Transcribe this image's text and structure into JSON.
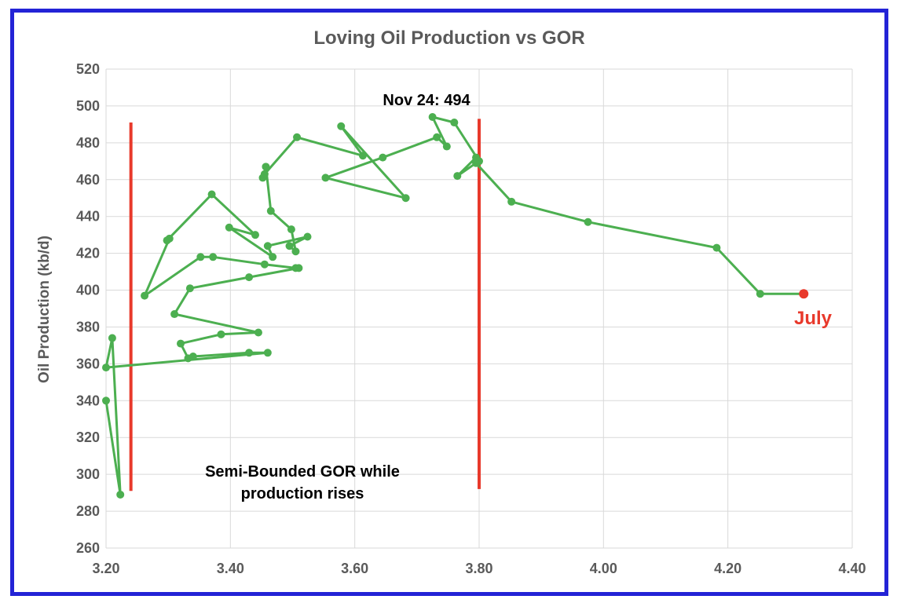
{
  "chart_data": {
    "type": "line",
    "title": "Loving Oil Production vs GOR",
    "xlabel": "",
    "ylabel": "Oil Production (kb/d)",
    "xlim": [
      3.2,
      4.4
    ],
    "ylim": [
      260,
      520
    ],
    "x_ticks": [
      "3.20",
      "3.40",
      "3.60",
      "3.80",
      "4.00",
      "4.20",
      "4.40"
    ],
    "y_ticks": [
      "260",
      "280",
      "300",
      "320",
      "340",
      "360",
      "380",
      "400",
      "420",
      "440",
      "460",
      "480",
      "500",
      "520"
    ],
    "grid": true,
    "legend": "none",
    "series": [
      {
        "color": "#4caf50",
        "points": [
          [
            3.2,
            340
          ],
          [
            3.223,
            289
          ],
          [
            3.21,
            374
          ],
          [
            3.2,
            358
          ],
          [
            3.46,
            366
          ],
          [
            3.43,
            366
          ],
          [
            3.34,
            364
          ],
          [
            3.332,
            363
          ],
          [
            3.32,
            371
          ],
          [
            3.385,
            376
          ],
          [
            3.445,
            377
          ],
          [
            3.31,
            387
          ],
          [
            3.335,
            401
          ],
          [
            3.43,
            407
          ],
          [
            3.51,
            412
          ],
          [
            3.505,
            412
          ],
          [
            3.455,
            414
          ],
          [
            3.372,
            418
          ],
          [
            3.352,
            418
          ],
          [
            3.262,
            397
          ],
          [
            3.302,
            428
          ],
          [
            3.298,
            427
          ],
          [
            3.37,
            452
          ],
          [
            3.44,
            430
          ],
          [
            3.398,
            434
          ],
          [
            3.468,
            418
          ],
          [
            3.46,
            424
          ],
          [
            3.524,
            429
          ],
          [
            3.495,
            424
          ],
          [
            3.505,
            421
          ],
          [
            3.498,
            433
          ],
          [
            3.465,
            443
          ],
          [
            3.457,
            467
          ],
          [
            3.452,
            461
          ],
          [
            3.455,
            463
          ],
          [
            3.507,
            483
          ],
          [
            3.613,
            473
          ],
          [
            3.578,
            489
          ],
          [
            3.682,
            450
          ],
          [
            3.553,
            461
          ],
          [
            3.645,
            472
          ],
          [
            3.732,
            483
          ],
          [
            3.748,
            478
          ],
          [
            3.725,
            494
          ],
          [
            3.76,
            491
          ],
          [
            3.8,
            470
          ],
          [
            3.795,
            472
          ],
          [
            3.765,
            462
          ],
          [
            3.795,
            469
          ],
          [
            3.852,
            448
          ],
          [
            3.975,
            437
          ],
          [
            4.182,
            423
          ],
          [
            4.252,
            398
          ],
          [
            4.322,
            398
          ]
        ]
      }
    ],
    "highlight_point": {
      "x": 4.322,
      "y": 398,
      "color": "#e8392b"
    },
    "bounds": [
      {
        "x": 3.24,
        "y0": 291,
        "y1": 491,
        "color": "#e8392b"
      },
      {
        "x": 3.8,
        "y0": 292,
        "y1": 493,
        "color": "#e8392b"
      }
    ],
    "annotations": {
      "peak": "Nov 24: 494",
      "july": "July",
      "note_line1": "Semi-Bounded GOR while",
      "note_line2": "production rises"
    }
  }
}
